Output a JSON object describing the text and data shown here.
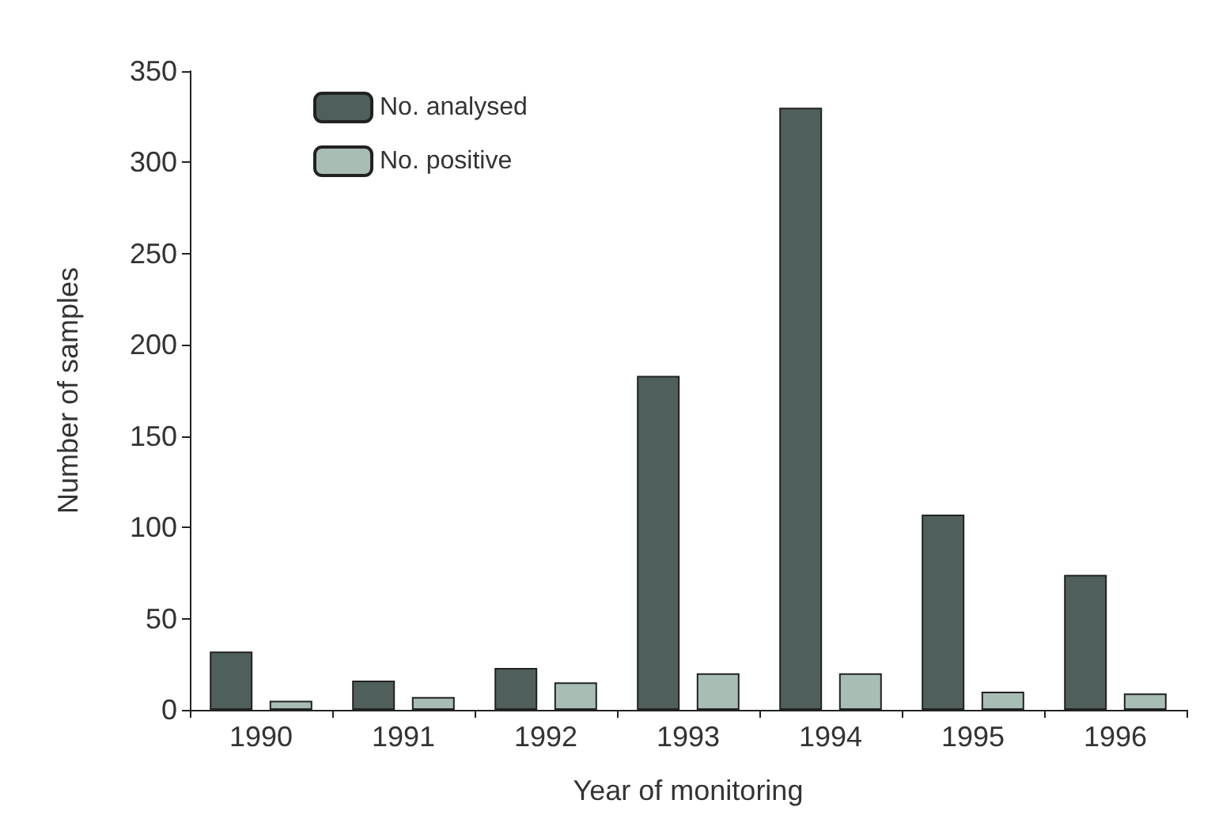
{
  "chart_data": {
    "type": "bar",
    "xlabel": "Year of monitoring",
    "ylabel": "Number of samples",
    "categories": [
      "1990",
      "1991",
      "1992",
      "1993",
      "1994",
      "1995",
      "1996"
    ],
    "series": [
      {
        "name": "No. analysed",
        "color": "#4f5f5c",
        "values": [
          32,
          16,
          23,
          183,
          330,
          107,
          74
        ]
      },
      {
        "name": "No. positive",
        "color": "#a8bdb4",
        "values": [
          5,
          7,
          15,
          20,
          20,
          10,
          9
        ]
      }
    ],
    "ylim": [
      0,
      350
    ],
    "yticks": [
      0,
      50,
      100,
      150,
      200,
      250,
      300,
      350
    ],
    "grid": false,
    "legend": "top left"
  }
}
